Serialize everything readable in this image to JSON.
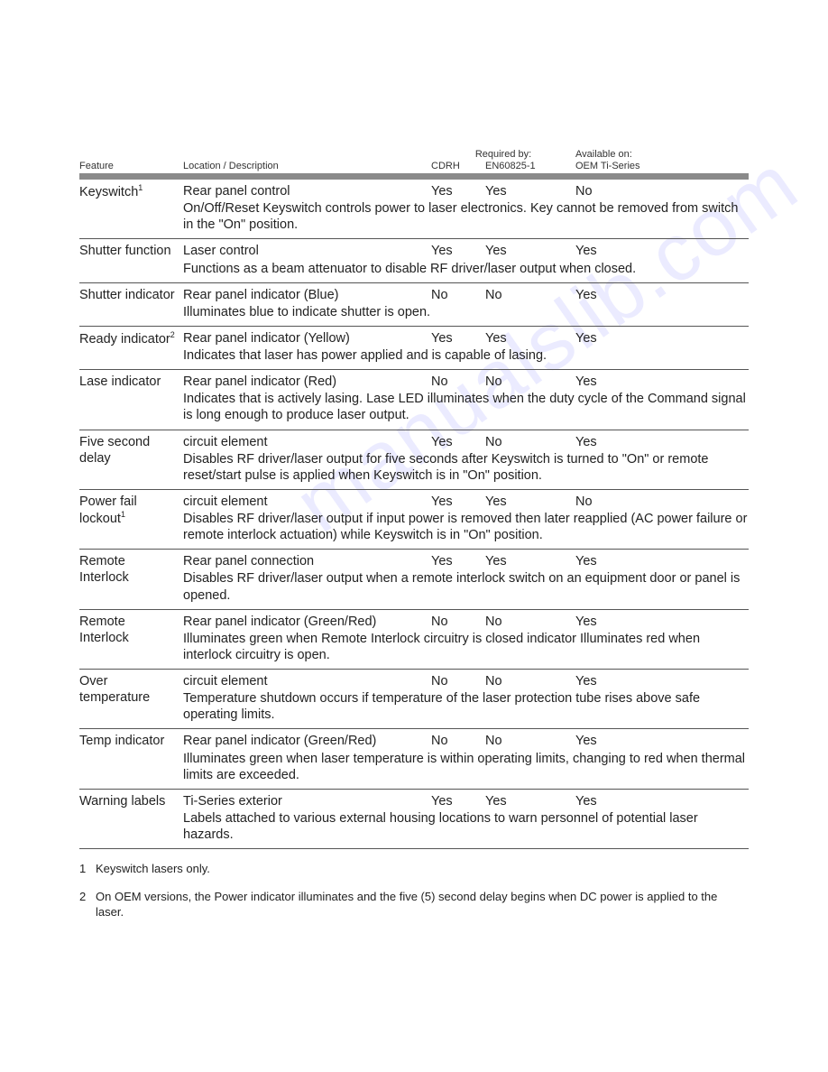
{
  "header": {
    "feature": "Feature",
    "location": "Location / Description",
    "required_by": "Required by:",
    "cdrh": "CDRH",
    "en": "EN60825-1",
    "available_on": "Available on:",
    "avail": "OEM Ti-Series"
  },
  "rows": [
    {
      "feature": "Keyswitch",
      "sup": "1",
      "location": "Rear panel control",
      "cdrh": "Yes",
      "en": "Yes",
      "avail": "No",
      "desc": "On/Off/Reset Keyswitch controls power to laser electronics. Key cannot be removed from switch in the \"On\" position."
    },
    {
      "feature": "Shutter function",
      "sup": "",
      "location": "Laser control",
      "cdrh": "Yes",
      "en": "Yes",
      "avail": "Yes",
      "desc": "Functions as a beam attenuator to disable RF driver/laser output when closed."
    },
    {
      "feature": "Shutter indicator",
      "sup": "",
      "location": "Rear panel indicator (Blue)",
      "cdrh": "No",
      "en": "No",
      "avail": "Yes",
      "desc": "Illuminates blue to indicate shutter is open."
    },
    {
      "feature": "Ready indicator",
      "sup": "2",
      "location": "Rear panel indicator (Yellow)",
      "cdrh": "Yes",
      "en": "Yes",
      "avail": "Yes",
      "desc": "Indicates that laser has power applied and is capable of lasing."
    },
    {
      "feature": "Lase indicator",
      "sup": "",
      "location": "Rear panel indicator (Red)",
      "cdrh": "No",
      "en": "No",
      "avail": "Yes",
      "desc": "Indicates that is actively lasing. Lase LED illuminates when the duty cycle of the Command signal is long enough to produce laser output."
    },
    {
      "feature": "Five second delay",
      "sup": "",
      "location": "circuit element",
      "cdrh": "Yes",
      "en": "No",
      "avail": "Yes",
      "desc": "Disables RF driver/laser output for five seconds after Keyswitch is turned to \"On\" or remote reset/start pulse is applied when Keyswitch is in \"On\" position."
    },
    {
      "feature": "Power fail lockout",
      "sup": "1",
      "location": "circuit element",
      "cdrh": "Yes",
      "en": "Yes",
      "avail": "No",
      "desc": "Disables RF driver/laser output if input power is removed then later reapplied (AC power failure or remote interlock actuation) while Keyswitch is in \"On\" position."
    },
    {
      "feature": "Remote Interlock",
      "sup": "",
      "location": "Rear panel connection",
      "cdrh": "Yes",
      "en": "Yes",
      "avail": "Yes",
      "desc": "Disables RF driver/laser output when a remote interlock switch on an equipment door or panel is opened."
    },
    {
      "feature": "Remote Interlock",
      "sup": "",
      "location": "Rear panel indicator (Green/Red)",
      "cdrh": "No",
      "en": "No",
      "avail": "Yes",
      "desc": "Illuminates green when Remote Interlock circuitry is closed indicator Illuminates red when interlock circuitry is open."
    },
    {
      "feature": "Over temperature",
      "sup": "",
      "location": "circuit element",
      "cdrh": "No",
      "en": "No",
      "avail": "Yes",
      "desc": "Temperature shutdown occurs if temperature of the laser protection tube rises above safe operating limits."
    },
    {
      "feature": "Temp indicator",
      "sup": "",
      "location": "Rear panel indicator (Green/Red)",
      "cdrh": "No",
      "en": "No",
      "avail": "Yes",
      "desc": "Illuminates green when laser temperature is within   operating limits, changing to red when thermal limits are exceeded."
    },
    {
      "feature": "Warning labels",
      "sup": "",
      "location": "Ti-Series exterior",
      "cdrh": "Yes",
      "en": "Yes",
      "avail": "Yes",
      "desc": "Labels attached to various external housing locations to warn personnel of potential laser hazards."
    }
  ],
  "footnotes": [
    {
      "num": "1",
      "text": "Keyswitch lasers only."
    },
    {
      "num": "2",
      "text": "On OEM versions, the Power indicator illuminates and the five (5) second delay begins when DC power is applied to the laser."
    }
  ],
  "watermark": "manualslib.com"
}
